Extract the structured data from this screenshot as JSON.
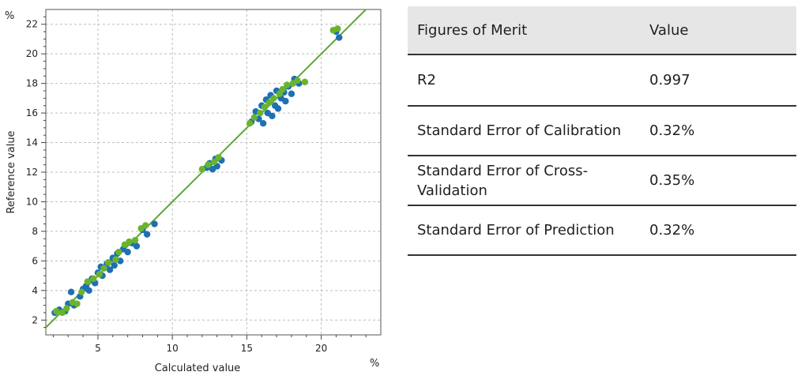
{
  "chart_data": {
    "type": "scatter",
    "xlabel": "Calculated value",
    "ylabel": "Reference value",
    "x_unit": "%",
    "y_unit": "%",
    "xlim": [
      1.5,
      24
    ],
    "ylim": [
      1,
      23
    ],
    "x_ticks": [
      5,
      10,
      15,
      20
    ],
    "y_ticks": [
      2,
      4,
      6,
      8,
      10,
      12,
      14,
      16,
      18,
      20,
      22
    ],
    "grid": true,
    "fit_line": {
      "from": [
        1.5,
        1.5
      ],
      "to": [
        24,
        24
      ],
      "color": "#5aa832"
    },
    "series": [
      {
        "color": "#1f6fb4",
        "points": [
          [
            2.1,
            2.5
          ],
          [
            2.4,
            2.7
          ],
          [
            2.8,
            2.6
          ],
          [
            3.0,
            3.1
          ],
          [
            3.2,
            3.9
          ],
          [
            3.4,
            3.0
          ],
          [
            3.8,
            3.6
          ],
          [
            4.0,
            4.1
          ],
          [
            4.2,
            4.3
          ],
          [
            4.4,
            4.0
          ],
          [
            4.6,
            4.8
          ],
          [
            4.8,
            4.5
          ],
          [
            5.0,
            5.2
          ],
          [
            5.2,
            5.6
          ],
          [
            5.3,
            5.0
          ],
          [
            5.6,
            5.8
          ],
          [
            5.8,
            5.4
          ],
          [
            6.0,
            6.2
          ],
          [
            6.1,
            5.7
          ],
          [
            6.3,
            6.5
          ],
          [
            6.5,
            6.0
          ],
          [
            6.7,
            6.8
          ],
          [
            7.0,
            6.6
          ],
          [
            7.3,
            7.2
          ],
          [
            7.6,
            7.0
          ],
          [
            8.0,
            8.1
          ],
          [
            8.3,
            7.8
          ],
          [
            8.8,
            8.5
          ],
          [
            12.3,
            12.3
          ],
          [
            12.5,
            12.6
          ],
          [
            12.7,
            12.2
          ],
          [
            12.9,
            12.9
          ],
          [
            13.0,
            12.4
          ],
          [
            13.3,
            12.8
          ],
          [
            15.3,
            15.4
          ],
          [
            15.6,
            16.1
          ],
          [
            15.8,
            15.6
          ],
          [
            16.0,
            16.5
          ],
          [
            16.1,
            15.3
          ],
          [
            16.3,
            16.9
          ],
          [
            16.4,
            16.0
          ],
          [
            16.6,
            17.2
          ],
          [
            16.7,
            15.8
          ],
          [
            16.9,
            16.5
          ],
          [
            17.0,
            17.5
          ],
          [
            17.1,
            16.3
          ],
          [
            17.3,
            17.0
          ],
          [
            17.5,
            17.4
          ],
          [
            17.6,
            16.8
          ],
          [
            17.8,
            17.8
          ],
          [
            18.0,
            17.3
          ],
          [
            18.2,
            18.3
          ],
          [
            18.5,
            18.0
          ],
          [
            21.0,
            21.5
          ],
          [
            21.2,
            21.1
          ]
        ]
      },
      {
        "color": "#6ab42d",
        "points": [
          [
            2.2,
            2.6
          ],
          [
            2.6,
            2.5
          ],
          [
            2.9,
            2.8
          ],
          [
            3.3,
            3.2
          ],
          [
            3.6,
            3.1
          ],
          [
            3.9,
            3.9
          ],
          [
            4.3,
            4.6
          ],
          [
            4.7,
            4.8
          ],
          [
            5.1,
            5.1
          ],
          [
            5.4,
            5.5
          ],
          [
            5.7,
            5.9
          ],
          [
            6.2,
            6.1
          ],
          [
            6.4,
            6.6
          ],
          [
            6.8,
            7.1
          ],
          [
            7.1,
            7.3
          ],
          [
            7.5,
            7.4
          ],
          [
            7.9,
            8.2
          ],
          [
            8.2,
            8.4
          ],
          [
            12.0,
            12.2
          ],
          [
            12.4,
            12.5
          ],
          [
            12.8,
            12.7
          ],
          [
            13.1,
            13.0
          ],
          [
            15.2,
            15.3
          ],
          [
            15.5,
            15.7
          ],
          [
            15.9,
            16.0
          ],
          [
            16.2,
            16.4
          ],
          [
            16.5,
            16.7
          ],
          [
            16.8,
            17.0
          ],
          [
            17.2,
            17.3
          ],
          [
            17.4,
            17.6
          ],
          [
            17.7,
            17.9
          ],
          [
            18.1,
            18.0
          ],
          [
            18.4,
            18.2
          ],
          [
            18.9,
            18.1
          ],
          [
            20.8,
            21.6
          ],
          [
            21.1,
            21.7
          ]
        ]
      }
    ]
  },
  "table": {
    "headers": [
      "Figures of Merit",
      "Value"
    ],
    "rows": [
      {
        "name": "R2",
        "value": "0.997"
      },
      {
        "name": "Standard Error of Calibration",
        "value": "0.32%"
      },
      {
        "name": "Standard Error of Cross-Validation",
        "value": "0.35%"
      },
      {
        "name": "Standard Error of Prediction",
        "value": "0.32%"
      }
    ]
  }
}
